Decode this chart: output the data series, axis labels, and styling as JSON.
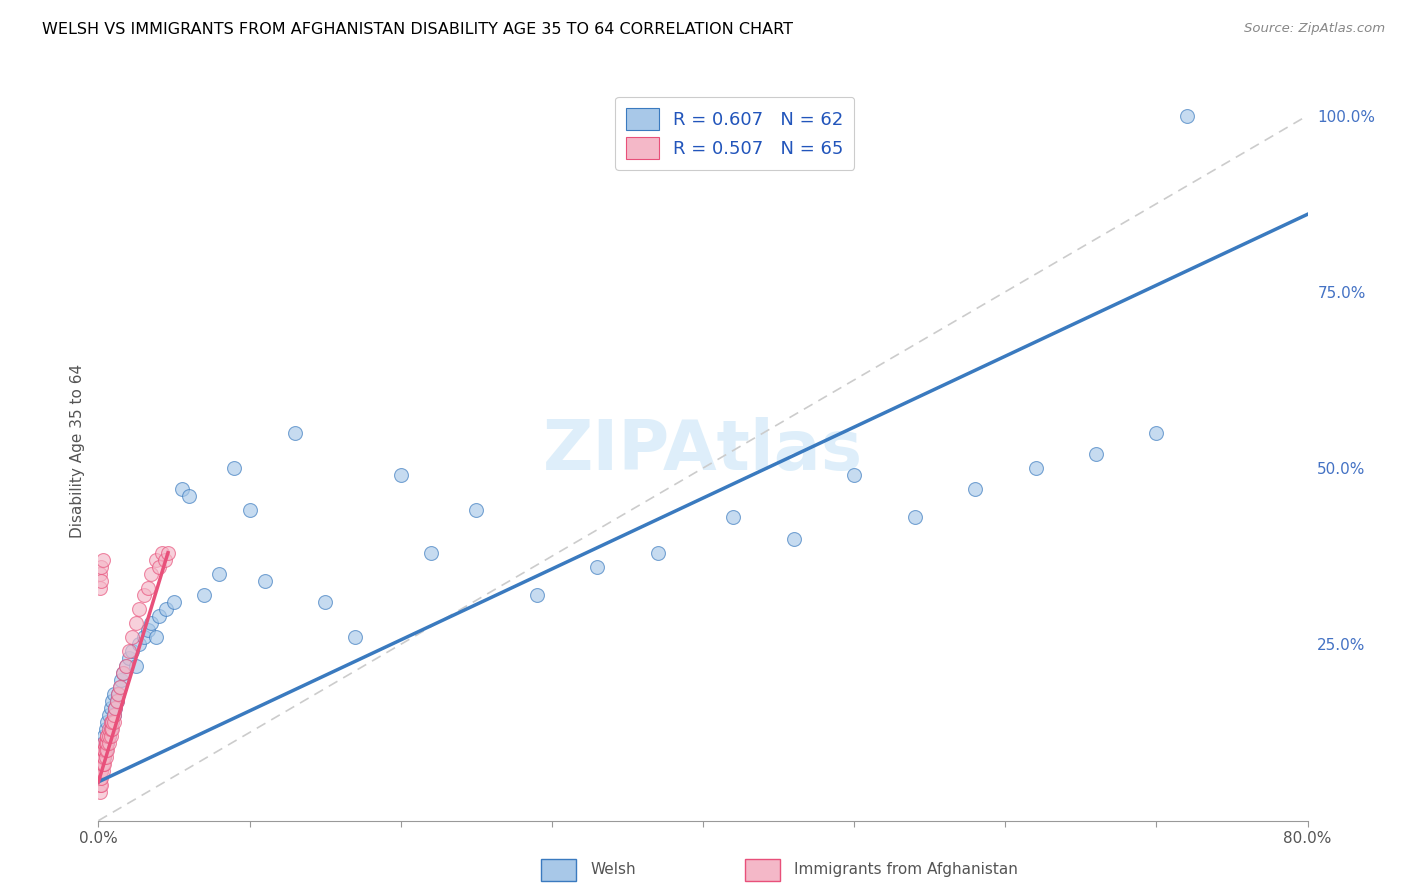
{
  "title": "WELSH VS IMMIGRANTS FROM AFGHANISTAN DISABILITY AGE 35 TO 64 CORRELATION CHART",
  "source": "Source: ZipAtlas.com",
  "xlabel": "",
  "ylabel": "Disability Age 35 to 64",
  "xlim": [
    0.0,
    0.8
  ],
  "ylim": [
    0.0,
    1.05
  ],
  "xticks": [
    0.0,
    0.1,
    0.2,
    0.3,
    0.4,
    0.5,
    0.6,
    0.7,
    0.8
  ],
  "ytick_positions": [
    0.0,
    0.25,
    0.5,
    0.75,
    1.0
  ],
  "yticklabels": [
    "",
    "25.0%",
    "50.0%",
    "75.0%",
    "100.0%"
  ],
  "welsh_color": "#a8c8e8",
  "afghan_color": "#f4b8c8",
  "welsh_line_color": "#3a7abf",
  "afghan_line_color": "#e8507a",
  "ref_line_color": "#cccccc",
  "legend_welsh_label": "R = 0.607   N = 62",
  "legend_afghan_label": "R = 0.507   N = 65",
  "watermark": "ZIPAtlas",
  "watermark_color": "#d0e8f8",
  "welsh_x": [
    0.001,
    0.002,
    0.002,
    0.003,
    0.003,
    0.004,
    0.004,
    0.005,
    0.005,
    0.006,
    0.006,
    0.007,
    0.007,
    0.008,
    0.008,
    0.009,
    0.009,
    0.01,
    0.01,
    0.011,
    0.012,
    0.013,
    0.014,
    0.015,
    0.016,
    0.018,
    0.02,
    0.022,
    0.025,
    0.027,
    0.03,
    0.033,
    0.035,
    0.038,
    0.04,
    0.045,
    0.05,
    0.055,
    0.06,
    0.07,
    0.08,
    0.09,
    0.1,
    0.11,
    0.13,
    0.15,
    0.17,
    0.2,
    0.22,
    0.25,
    0.29,
    0.33,
    0.37,
    0.42,
    0.46,
    0.5,
    0.54,
    0.58,
    0.62,
    0.66,
    0.7,
    0.72
  ],
  "welsh_y": [
    0.08,
    0.09,
    0.1,
    0.1,
    0.11,
    0.09,
    0.12,
    0.1,
    0.13,
    0.11,
    0.14,
    0.12,
    0.15,
    0.13,
    0.16,
    0.14,
    0.17,
    0.15,
    0.18,
    0.16,
    0.17,
    0.18,
    0.19,
    0.2,
    0.21,
    0.22,
    0.23,
    0.24,
    0.22,
    0.25,
    0.26,
    0.27,
    0.28,
    0.26,
    0.29,
    0.3,
    0.31,
    0.47,
    0.46,
    0.32,
    0.35,
    0.5,
    0.44,
    0.34,
    0.55,
    0.31,
    0.26,
    0.49,
    0.38,
    0.44,
    0.32,
    0.36,
    0.38,
    0.43,
    0.4,
    0.49,
    0.43,
    0.47,
    0.5,
    0.52,
    0.55,
    1.0
  ],
  "afghan_x": [
    0.001,
    0.001,
    0.001,
    0.001,
    0.001,
    0.002,
    0.002,
    0.002,
    0.002,
    0.002,
    0.002,
    0.002,
    0.003,
    0.003,
    0.003,
    0.003,
    0.003,
    0.003,
    0.003,
    0.004,
    0.004,
    0.004,
    0.004,
    0.004,
    0.005,
    0.005,
    0.005,
    0.005,
    0.006,
    0.006,
    0.006,
    0.006,
    0.007,
    0.007,
    0.007,
    0.008,
    0.008,
    0.008,
    0.009,
    0.009,
    0.01,
    0.01,
    0.011,
    0.012,
    0.013,
    0.014,
    0.016,
    0.018,
    0.02,
    0.022,
    0.025,
    0.027,
    0.03,
    0.033,
    0.035,
    0.038,
    0.04,
    0.042,
    0.044,
    0.046,
    0.001,
    0.001,
    0.002,
    0.002,
    0.003
  ],
  "afghan_y": [
    0.04,
    0.05,
    0.06,
    0.06,
    0.07,
    0.05,
    0.06,
    0.07,
    0.07,
    0.08,
    0.08,
    0.09,
    0.07,
    0.08,
    0.08,
    0.09,
    0.09,
    0.1,
    0.1,
    0.08,
    0.09,
    0.1,
    0.1,
    0.11,
    0.09,
    0.1,
    0.11,
    0.11,
    0.1,
    0.11,
    0.12,
    0.12,
    0.11,
    0.12,
    0.13,
    0.12,
    0.13,
    0.14,
    0.13,
    0.14,
    0.14,
    0.15,
    0.16,
    0.17,
    0.18,
    0.19,
    0.21,
    0.22,
    0.24,
    0.26,
    0.28,
    0.3,
    0.32,
    0.33,
    0.35,
    0.37,
    0.36,
    0.38,
    0.37,
    0.38,
    0.35,
    0.33,
    0.36,
    0.34,
    0.37
  ],
  "welsh_trend_x": [
    0.0,
    0.8
  ],
  "welsh_trend_y": [
    0.055,
    0.86
  ],
  "afghan_trend_x": [
    0.0,
    0.046
  ],
  "afghan_trend_y": [
    0.055,
    0.38
  ]
}
